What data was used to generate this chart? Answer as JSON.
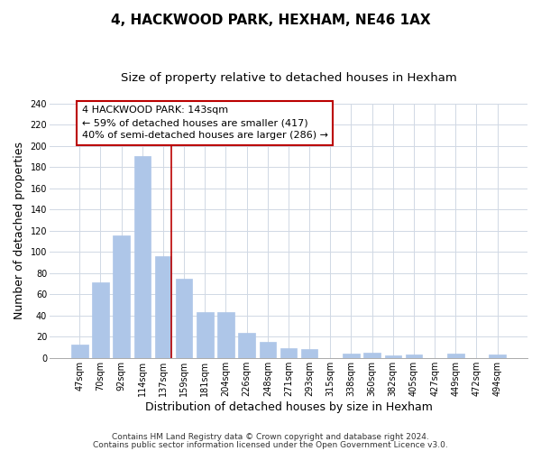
{
  "title": "4, HACKWOOD PARK, HEXHAM, NE46 1AX",
  "subtitle": "Size of property relative to detached houses in Hexham",
  "xlabel": "Distribution of detached houses by size in Hexham",
  "ylabel": "Number of detached properties",
  "bar_labels": [
    "47sqm",
    "70sqm",
    "92sqm",
    "114sqm",
    "137sqm",
    "159sqm",
    "181sqm",
    "204sqm",
    "226sqm",
    "248sqm",
    "271sqm",
    "293sqm",
    "315sqm",
    "338sqm",
    "360sqm",
    "382sqm",
    "405sqm",
    "427sqm",
    "449sqm",
    "472sqm",
    "494sqm"
  ],
  "bar_values": [
    13,
    71,
    116,
    191,
    96,
    75,
    43,
    43,
    24,
    15,
    9,
    8,
    0,
    4,
    5,
    2,
    3,
    0,
    4,
    0,
    3
  ],
  "bar_color": "#aec6e8",
  "bar_edge_color": "#aec6e8",
  "highlight_line_after_index": 4,
  "annotation_line1": "4 HACKWOOD PARK: 143sqm",
  "annotation_line2": "← 59% of detached houses are smaller (417)",
  "annotation_line3": "40% of semi-detached houses are larger (286) →",
  "annotation_box_color": "#ffffff",
  "annotation_box_edge": "#bb0000",
  "red_line_color": "#bb0000",
  "ylim": [
    0,
    240
  ],
  "yticks": [
    0,
    20,
    40,
    60,
    80,
    100,
    120,
    140,
    160,
    180,
    200,
    220,
    240
  ],
  "footer1": "Contains HM Land Registry data © Crown copyright and database right 2024.",
  "footer2": "Contains public sector information licensed under the Open Government Licence v3.0.",
  "bg_color": "#ffffff",
  "grid_color": "#d0d8e4",
  "title_fontsize": 11,
  "subtitle_fontsize": 9.5,
  "axis_label_fontsize": 9,
  "tick_fontsize": 7,
  "annotation_fontsize": 8,
  "footer_fontsize": 6.5
}
